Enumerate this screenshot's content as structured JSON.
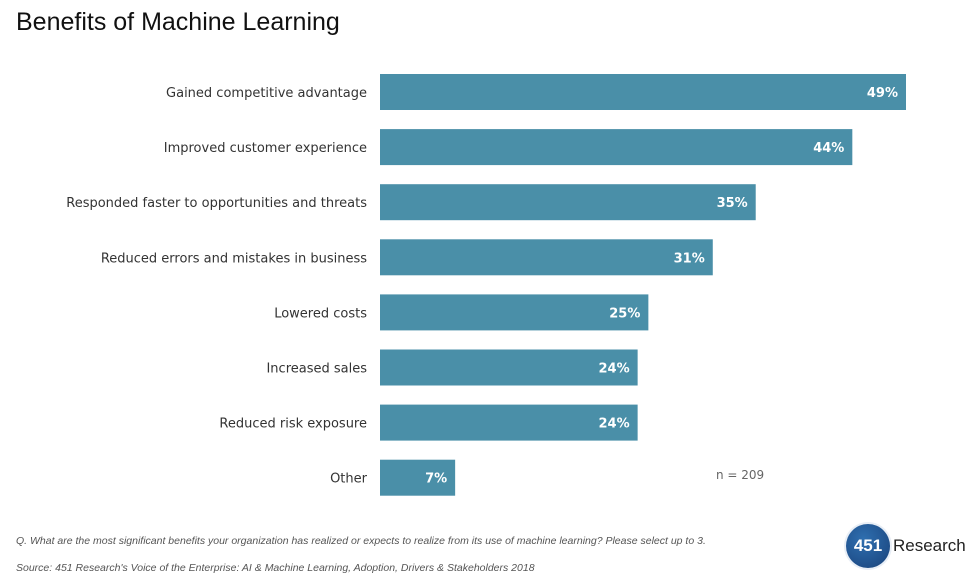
{
  "title": "Benefits of Machine Learning",
  "sample_note": "n = 209",
  "question": "Q. What are the most significant benefits your organization has realized or expects to realize from its use of machine learning? Please select up to 3.",
  "source": "Source: 451 Research's Voice of the Enterprise: AI & Machine Learning, Adoption, Drivers & Stakeholders 2018",
  "logo": {
    "mark": "451",
    "text": "Research"
  },
  "colors": {
    "bar": "#4a8fa8",
    "bar_label": "#ffffff",
    "category_label": "#333333"
  },
  "chart_data": {
    "type": "bar",
    "orientation": "horizontal",
    "title": "Benefits of Machine Learning",
    "categories": [
      "Gained competitive advantage",
      "Improved customer experience",
      "Responded faster to opportunities and threats",
      "Reduced errors and mistakes in business",
      "Lowered costs",
      "Increased sales",
      "Reduced risk exposure",
      "Other"
    ],
    "values": [
      49,
      44,
      35,
      31,
      25,
      24,
      24,
      7
    ],
    "value_labels": [
      "49%",
      "44%",
      "35%",
      "31%",
      "25%",
      "24%",
      "24%",
      "7%"
    ],
    "unit": "%",
    "xlim": [
      0,
      49
    ],
    "grid": false,
    "legend": "none"
  }
}
